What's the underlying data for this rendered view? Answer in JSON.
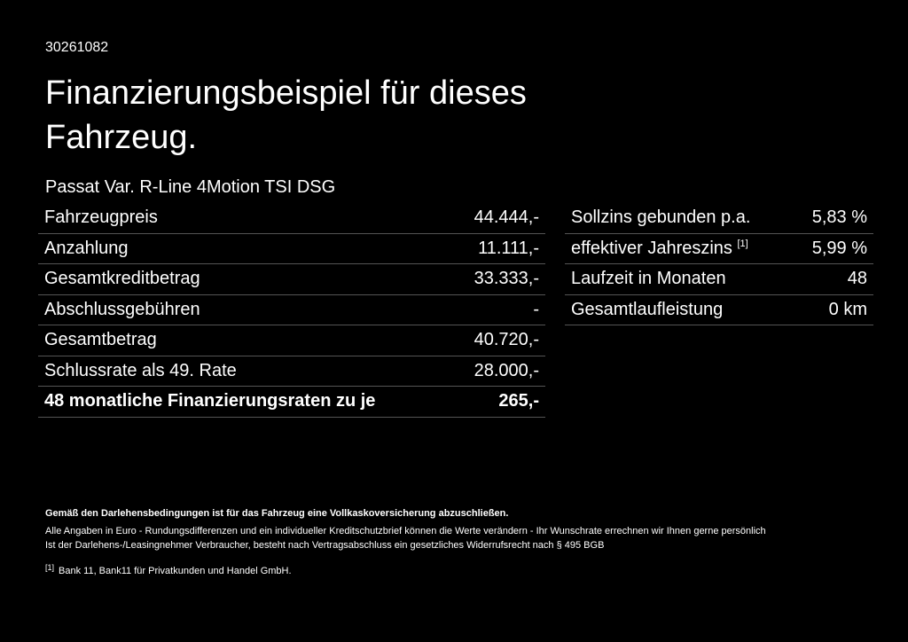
{
  "header": {
    "id": "30261082",
    "title": "Finanzierungsbeispiel für dieses Fahrzeug."
  },
  "model": "Passat Var. R-Line 4Motion TSI DSG",
  "left_table": {
    "rows": [
      [
        "Fahrzeugpreis",
        "44.444,-"
      ],
      [
        "Anzahlung",
        "11.111,-"
      ],
      [
        "Gesamtkreditbetrag",
        "33.333,-"
      ],
      [
        "Abschlussgebühren",
        "-"
      ],
      [
        "Gesamtbetrag",
        "40.720,-"
      ],
      [
        "Schlussrate als 49. Rate",
        "28.000,-"
      ],
      [
        "48 monatliche Finanzierungsraten zu je",
        "265,-"
      ]
    ]
  },
  "right_table": {
    "rows": [
      {
        "label": "Sollzins gebunden p.a.",
        "value": "5,83 %"
      },
      {
        "label": "effektiver Jahreszins",
        "note": "[1]",
        "value": "5,99 %"
      },
      {
        "label": "Laufzeit in Monaten",
        "value": "48"
      },
      {
        "label": "Gesamtlaufleistung",
        "value": "0 km"
      }
    ]
  },
  "footer": {
    "bold": "Gemäß den Darlehensbedingungen ist für das Fahrzeug eine Vollkaskoversicherung abzuschließen.",
    "lines": [
      "Alle Angaben in Euro - Rundungsdifferenzen und ein individueller Kreditschutzbrief können die Werte verändern - Ihr Wunschrate errechnen wir Ihnen gerne persönlich",
      "Ist der Darlehens-/Leasingnehmer Verbraucher, besteht nach Vertragsabschluss ein gesetzliches Widerrufsrecht nach § 495 BGB"
    ],
    "footnote": {
      "mark": "[1]",
      "text": "Bank 11, Bank11 für Privatkunden und Handel GmbH."
    }
  }
}
